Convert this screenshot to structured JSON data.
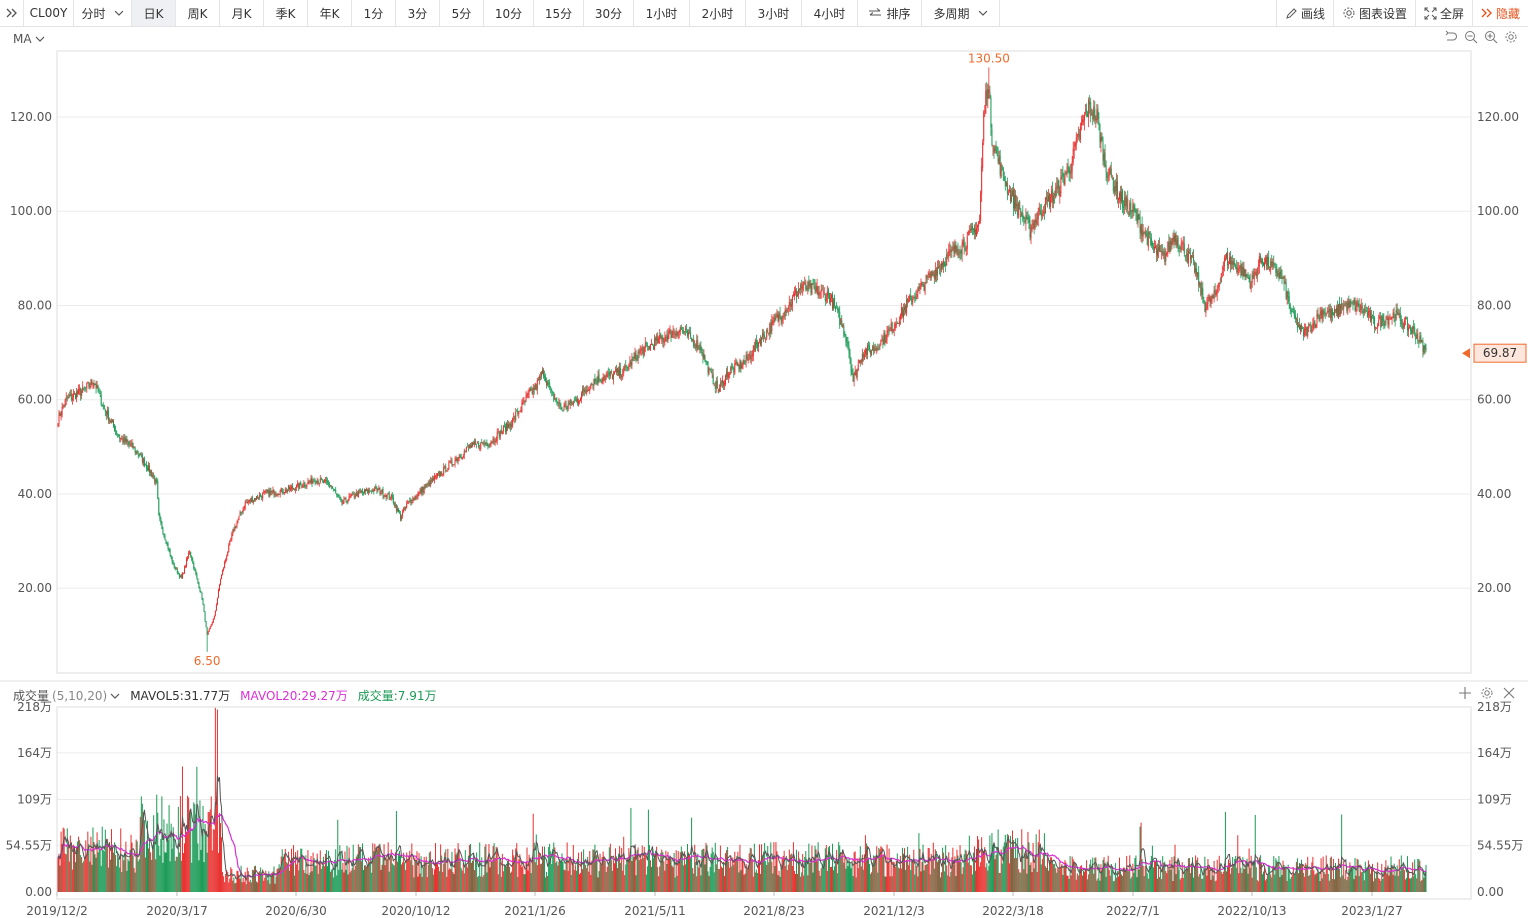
{
  "toolbar": {
    "symbol": "CL00Y",
    "periods": [
      "分时",
      "日K",
      "周K",
      "月K",
      "季K",
      "年K",
      "1分",
      "3分",
      "5分",
      "10分",
      "15分",
      "30分",
      "1小时",
      "2小时",
      "3小时",
      "4小时"
    ],
    "active": "日K",
    "sort_label": "排序",
    "multi_label": "多周期",
    "draw_label": "画线",
    "settings_label": "图表设置",
    "fullscreen_label": "全屏",
    "hide_label": "隐藏"
  },
  "main_panel": {
    "indicator_label": "MA"
  },
  "volume_panel": {
    "title": "成交量",
    "params": "(5,10,20)",
    "mavol5": "MAVOL5:31.77万",
    "mavol20": "MAVOL20:29.27万",
    "vol": "成交量:7.91万"
  },
  "colors": {
    "up": "#e8312f",
    "down": "#1a9a55",
    "accent": "#f06a2c",
    "mavol5": "#555555",
    "mavol20": "#d92fd6"
  },
  "chart_data": {
    "type": "candlestick",
    "x_tick_labels": [
      "2019/12/2",
      "2020/3/17",
      "2020/6/30",
      "2020/10/12",
      "2021/1/26",
      "2021/5/11",
      "2021/8/23",
      "2021/12/3",
      "2022/3/18",
      "2022/7/1",
      "2022/10/13",
      "2023/1/27"
    ],
    "price_axis": {
      "ticks": [
        "20.00",
        "40.00",
        "60.00",
        "80.00",
        "100.00",
        "120.00"
      ],
      "ylim": [
        2,
        134
      ]
    },
    "max_label": "130.50",
    "min_label": "6.50",
    "last_price": "69.87",
    "close_path": [
      [
        0,
        56
      ],
      [
        8,
        60
      ],
      [
        25,
        62
      ],
      [
        35,
        64
      ],
      [
        45,
        58
      ],
      [
        60,
        52
      ],
      [
        72,
        50
      ],
      [
        80,
        48
      ],
      [
        92,
        44
      ],
      [
        96,
        42
      ],
      [
        98,
        35
      ],
      [
        105,
        30
      ],
      [
        112,
        25
      ],
      [
        120,
        22
      ],
      [
        128,
        28
      ],
      [
        135,
        22
      ],
      [
        140,
        18
      ],
      [
        145,
        10
      ],
      [
        152,
        14
      ],
      [
        158,
        22
      ],
      [
        170,
        32
      ],
      [
        182,
        38
      ],
      [
        200,
        40
      ],
      [
        225,
        41
      ],
      [
        250,
        43
      ],
      [
        265,
        42
      ],
      [
        275,
        38
      ],
      [
        290,
        40
      ],
      [
        310,
        41
      ],
      [
        325,
        39
      ],
      [
        333,
        35
      ],
      [
        340,
        38
      ],
      [
        360,
        42
      ],
      [
        380,
        46
      ],
      [
        400,
        50
      ],
      [
        420,
        51
      ],
      [
        440,
        55
      ],
      [
        455,
        60
      ],
      [
        465,
        63
      ],
      [
        472,
        66
      ],
      [
        480,
        61
      ],
      [
        490,
        58
      ],
      [
        505,
        60
      ],
      [
        520,
        64
      ],
      [
        535,
        65
      ],
      [
        550,
        66
      ],
      [
        565,
        70
      ],
      [
        580,
        72
      ],
      [
        595,
        74
      ],
      [
        605,
        75
      ],
      [
        615,
        73
      ],
      [
        625,
        71
      ],
      [
        633,
        66
      ],
      [
        642,
        62
      ],
      [
        652,
        66
      ],
      [
        668,
        68
      ],
      [
        680,
        72
      ],
      [
        695,
        76
      ],
      [
        710,
        80
      ],
      [
        722,
        84
      ],
      [
        738,
        83
      ],
      [
        750,
        82
      ],
      [
        762,
        76
      ],
      [
        768,
        72
      ],
      [
        773,
        64
      ],
      [
        782,
        70
      ],
      [
        795,
        71
      ],
      [
        810,
        75
      ],
      [
        825,
        80
      ],
      [
        840,
        84
      ],
      [
        855,
        88
      ],
      [
        868,
        91
      ],
      [
        880,
        93
      ],
      [
        888,
        95
      ],
      [
        896,
        98
      ],
      [
        900,
        120
      ],
      [
        904,
        128
      ],
      [
        908,
        116
      ],
      [
        915,
        110
      ],
      [
        925,
        104
      ],
      [
        935,
        100
      ],
      [
        945,
        96
      ],
      [
        955,
        100
      ],
      [
        970,
        104
      ],
      [
        985,
        110
      ],
      [
        995,
        118
      ],
      [
        1002,
        122
      ],
      [
        1010,
        120
      ],
      [
        1018,
        110
      ],
      [
        1026,
        106
      ],
      [
        1035,
        102
      ],
      [
        1045,
        100
      ],
      [
        1055,
        96
      ],
      [
        1065,
        92
      ],
      [
        1075,
        90
      ],
      [
        1085,
        95
      ],
      [
        1095,
        92
      ],
      [
        1105,
        88
      ],
      [
        1115,
        80
      ],
      [
        1125,
        82
      ],
      [
        1135,
        90
      ],
      [
        1148,
        88
      ],
      [
        1160,
        85
      ],
      [
        1170,
        90
      ],
      [
        1180,
        88
      ],
      [
        1190,
        86
      ],
      [
        1200,
        78
      ],
      [
        1210,
        74
      ],
      [
        1220,
        76
      ],
      [
        1230,
        79
      ],
      [
        1240,
        78
      ],
      [
        1250,
        80
      ],
      [
        1260,
        80
      ],
      [
        1270,
        79
      ],
      [
        1280,
        76
      ],
      [
        1290,
        77
      ],
      [
        1300,
        78
      ],
      [
        1310,
        76
      ],
      [
        1320,
        74
      ],
      [
        1330,
        70
      ]
    ],
    "volume_axis": {
      "ticks": [
        "0.00",
        "54.55万",
        "109万",
        "164万",
        "218万"
      ],
      "ylim": [
        0,
        218
      ]
    },
    "volume_level_by_segment": [
      {
        "from": 0,
        "to": 80,
        "level": 50
      },
      {
        "from": 80,
        "to": 160,
        "level": 75
      },
      {
        "from": 160,
        "to": 215,
        "level": 20
      },
      {
        "from": 215,
        "to": 890,
        "level": 38
      },
      {
        "from": 890,
        "to": 960,
        "level": 48
      },
      {
        "from": 960,
        "to": 1330,
        "level": 28
      }
    ]
  }
}
